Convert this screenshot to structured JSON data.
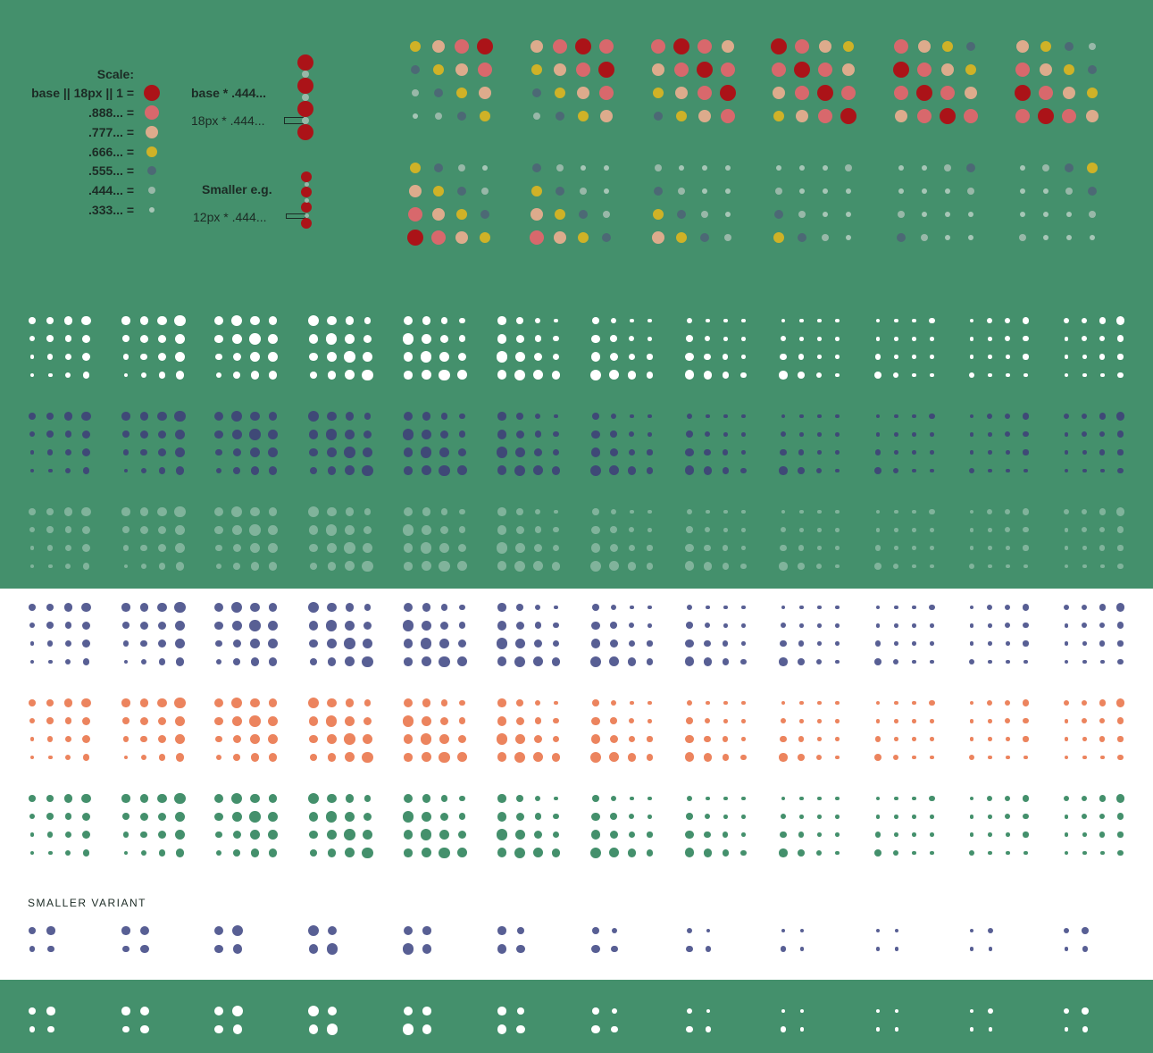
{
  "colors": {
    "green_bg": "#44906c",
    "s1": "#ab1318",
    "s888": "#d8686c",
    "s777": "#ddab8c",
    "s666": "#cfb227",
    "s555": "#4c6975",
    "s444": "#98b8a8",
    "s333": "#a6c6b6",
    "white": "#ffffff",
    "navy": "#3f4678",
    "navy_light": "#585f94",
    "coral": "#ec845e",
    "green_dot": "#44906c"
  },
  "legend": {
    "scale_title": "Scale:",
    "rows": [
      {
        "label": "base || 18px || 1 =",
        "color_key": "s1"
      },
      {
        "label": ".888... =",
        "color_key": "s888"
      },
      {
        "label": ".777... =",
        "color_key": "s777"
      },
      {
        "label": ".666... =",
        "color_key": "s666"
      },
      {
        "label": ".555... =",
        "color_key": "s555"
      },
      {
        "label": ".444... =",
        "color_key": "s444"
      },
      {
        "label": ".333... =",
        "color_key": "s333"
      }
    ],
    "base_example_label": "base * .444...",
    "base_example_sub": "18px * .444...",
    "smaller_example_label": "Smaller e.g.",
    "smaller_example_sub": "12px * .444..."
  },
  "scales": [
    1,
    0.888,
    0.777,
    0.666,
    0.555,
    0.444,
    0.333
  ],
  "smaller_variant_title": "SMALLER VARIANT",
  "sets": {
    "colored_grids": [
      [
        [
          3,
          2,
          1,
          0
        ],
        [
          4,
          3,
          2,
          1
        ],
        [
          5,
          4,
          3,
          2
        ],
        [
          6,
          5,
          4,
          3
        ]
      ],
      [
        [
          2,
          1,
          0,
          1
        ],
        [
          3,
          2,
          1,
          0
        ],
        [
          4,
          3,
          2,
          1
        ],
        [
          5,
          4,
          3,
          2
        ]
      ],
      [
        [
          1,
          0,
          1,
          2
        ],
        [
          2,
          1,
          0,
          1
        ],
        [
          3,
          2,
          1,
          0
        ],
        [
          4,
          3,
          2,
          1
        ]
      ],
      [
        [
          0,
          1,
          2,
          3
        ],
        [
          1,
          0,
          1,
          2
        ],
        [
          2,
          1,
          0,
          1
        ],
        [
          3,
          2,
          1,
          0
        ]
      ],
      [
        [
          1,
          2,
          3,
          4
        ],
        [
          0,
          1,
          2,
          3
        ],
        [
          1,
          0,
          1,
          2
        ],
        [
          2,
          1,
          0,
          1
        ]
      ],
      [
        [
          2,
          3,
          4,
          5
        ],
        [
          1,
          2,
          3,
          4
        ],
        [
          0,
          1,
          2,
          3
        ],
        [
          1,
          0,
          1,
          2
        ]
      ],
      [
        [
          3,
          4,
          5,
          6
        ],
        [
          2,
          3,
          4,
          5
        ],
        [
          1,
          2,
          3,
          4
        ],
        [
          0,
          1,
          2,
          3
        ]
      ],
      [
        [
          4,
          5,
          6,
          6
        ],
        [
          3,
          4,
          5,
          6
        ],
        [
          2,
          3,
          4,
          5
        ],
        [
          1,
          2,
          3,
          4
        ]
      ],
      [
        [
          5,
          6,
          6,
          6
        ],
        [
          4,
          5,
          6,
          6
        ],
        [
          3,
          4,
          5,
          6
        ],
        [
          2,
          3,
          4,
          5
        ]
      ],
      [
        [
          6,
          6,
          6,
          5
        ],
        [
          5,
          6,
          6,
          6
        ],
        [
          4,
          5,
          6,
          6
        ],
        [
          3,
          4,
          5,
          6
        ]
      ],
      [
        [
          6,
          6,
          5,
          4
        ],
        [
          6,
          6,
          6,
          5
        ],
        [
          5,
          6,
          6,
          6
        ],
        [
          4,
          5,
          6,
          6
        ]
      ],
      [
        [
          6,
          5,
          4,
          3
        ],
        [
          6,
          6,
          5,
          4
        ],
        [
          6,
          6,
          6,
          5
        ],
        [
          5,
          6,
          6,
          6
        ]
      ]
    ],
    "cycle_grids": [
      [
        [
          4,
          4,
          3,
          2
        ],
        [
          5,
          4,
          4,
          3
        ],
        [
          6,
          5,
          4,
          3
        ],
        [
          6,
          6,
          5,
          4
        ]
      ],
      [
        [
          3,
          3,
          2,
          1
        ],
        [
          4,
          3,
          3,
          2
        ],
        [
          5,
          4,
          3,
          2
        ],
        [
          6,
          5,
          4,
          3
        ]
      ],
      [
        [
          2,
          1,
          2,
          3
        ],
        [
          3,
          2,
          1,
          2
        ],
        [
          4,
          3,
          2,
          2
        ],
        [
          5,
          4,
          3,
          3
        ]
      ],
      [
        [
          1,
          2,
          3,
          4
        ],
        [
          2,
          1,
          2,
          3
        ],
        [
          3,
          2,
          1,
          2
        ],
        [
          4,
          3,
          2,
          1
        ]
      ],
      [
        [
          2,
          3,
          4,
          5
        ],
        [
          1,
          2,
          3,
          4
        ],
        [
          2,
          1,
          2,
          3
        ],
        [
          3,
          2,
          1,
          2
        ]
      ],
      [
        [
          3,
          4,
          5,
          6
        ],
        [
          2,
          3,
          4,
          5
        ],
        [
          1,
          2,
          3,
          4
        ],
        [
          2,
          1,
          2,
          3
        ]
      ],
      [
        [
          4,
          5,
          6,
          6
        ],
        [
          3,
          4,
          5,
          6
        ],
        [
          2,
          3,
          4,
          5
        ],
        [
          1,
          2,
          3,
          4
        ]
      ],
      [
        [
          5,
          6,
          6,
          6
        ],
        [
          4,
          5,
          6,
          6
        ],
        [
          3,
          4,
          5,
          6
        ],
        [
          2,
          3,
          4,
          5
        ]
      ],
      [
        [
          6,
          6,
          6,
          6
        ],
        [
          5,
          6,
          6,
          6
        ],
        [
          4,
          5,
          6,
          6
        ],
        [
          3,
          4,
          5,
          6
        ]
      ],
      [
        [
          6,
          6,
          6,
          5
        ],
        [
          6,
          6,
          6,
          6
        ],
        [
          5,
          6,
          6,
          6
        ],
        [
          4,
          5,
          6,
          6
        ]
      ],
      [
        [
          6,
          5,
          5,
          4
        ],
        [
          6,
          6,
          5,
          5
        ],
        [
          6,
          6,
          6,
          5
        ],
        [
          5,
          6,
          6,
          6
        ]
      ],
      [
        [
          5,
          5,
          4,
          3
        ],
        [
          6,
          5,
          5,
          4
        ],
        [
          6,
          6,
          5,
          5
        ],
        [
          6,
          6,
          6,
          5
        ]
      ]
    ],
    "small_grids": [
      [
        [
          4,
          3
        ],
        [
          5,
          4
        ]
      ],
      [
        [
          3,
          2
        ],
        [
          4,
          3
        ]
      ],
      [
        [
          2,
          1
        ],
        [
          3,
          2
        ]
      ],
      [
        [
          1,
          2
        ],
        [
          2,
          1
        ]
      ],
      [
        [
          2,
          3
        ],
        [
          1,
          2
        ]
      ],
      [
        [
          3,
          4
        ],
        [
          2,
          3
        ]
      ],
      [
        [
          4,
          5
        ],
        [
          3,
          4
        ]
      ],
      [
        [
          5,
          6
        ],
        [
          4,
          5
        ]
      ],
      [
        [
          6,
          6
        ],
        [
          5,
          6
        ]
      ],
      [
        [
          6,
          6
        ],
        [
          6,
          6
        ]
      ],
      [
        [
          6,
          5
        ],
        [
          6,
          6
        ]
      ],
      [
        [
          5,
          4
        ],
        [
          6,
          5
        ]
      ]
    ]
  }
}
